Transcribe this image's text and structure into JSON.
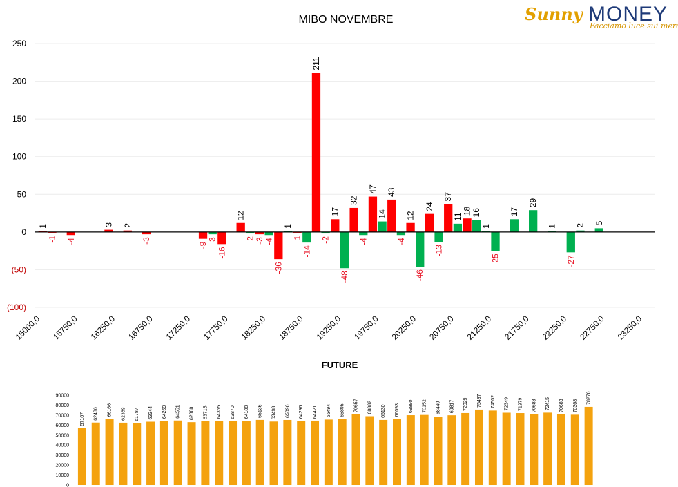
{
  "logo": {
    "brand_left": "Sunny",
    "brand_right": "MONEY",
    "tagline": "Facciamo luce sui mercati"
  },
  "chart_data": [
    {
      "type": "bar",
      "title": "MIBO NOVEMBRE",
      "ylim": [
        -100,
        250
      ],
      "yticks": [
        "250",
        "200",
        "150",
        "100",
        "50",
        "0",
        "(50)",
        "(100)"
      ],
      "x_tick_labels": [
        "15000,0",
        "15750,0",
        "16250,0",
        "16750,0",
        "17250,0",
        "17750,0",
        "18250,0",
        "18750,0",
        "19250,0",
        "19750,0",
        "20250,0",
        "20750,0",
        "21250,0",
        "21750,0",
        "22250,0",
        "22750,0",
        "23250,0"
      ],
      "grid": true,
      "colors": {
        "red": "#ff0000",
        "green": "#00b050",
        "negative_label": "#e81123",
        "positive_label": "#000000"
      },
      "bars": [
        {
          "slot": 0,
          "color": "red",
          "value": 1
        },
        {
          "slot": 1,
          "color": "red",
          "value": -1
        },
        {
          "slot": 3,
          "color": "red",
          "value": -4
        },
        {
          "slot": 7,
          "color": "red",
          "value": 3
        },
        {
          "slot": 9,
          "color": "red",
          "value": 2
        },
        {
          "slot": 11,
          "color": "red",
          "value": -3
        },
        {
          "slot": 17,
          "color": "red",
          "value": -9
        },
        {
          "slot": 18,
          "color": "green",
          "value": -3
        },
        {
          "slot": 19,
          "color": "red",
          "value": -16
        },
        {
          "slot": 21,
          "color": "red",
          "value": 12
        },
        {
          "slot": 22,
          "color": "green",
          "value": -2
        },
        {
          "slot": 23,
          "color": "red",
          "value": -3
        },
        {
          "slot": 24,
          "color": "green",
          "value": -4
        },
        {
          "slot": 25,
          "color": "red",
          "value": -36
        },
        {
          "slot": 26,
          "color": "green",
          "value": 1
        },
        {
          "slot": 27,
          "color": "red",
          "value": -1
        },
        {
          "slot": 28,
          "color": "green",
          "value": -14
        },
        {
          "slot": 29,
          "color": "red",
          "value": 211
        },
        {
          "slot": 30,
          "color": "green",
          "value": -2
        },
        {
          "slot": 31,
          "color": "red",
          "value": 17
        },
        {
          "slot": 32,
          "color": "green",
          "value": -48
        },
        {
          "slot": 33,
          "color": "red",
          "value": 32
        },
        {
          "slot": 34,
          "color": "green",
          "value": -4
        },
        {
          "slot": 35,
          "color": "red",
          "value": 47
        },
        {
          "slot": 36,
          "color": "green",
          "value": 14
        },
        {
          "slot": 37,
          "color": "red",
          "value": 43
        },
        {
          "slot": 38,
          "color": "green",
          "value": -4
        },
        {
          "slot": 39,
          "color": "red",
          "value": 12
        },
        {
          "slot": 40,
          "color": "green",
          "value": -46
        },
        {
          "slot": 41,
          "color": "red",
          "value": 24
        },
        {
          "slot": 42,
          "color": "green",
          "value": -13
        },
        {
          "slot": 43,
          "color": "red",
          "value": 37
        },
        {
          "slot": 44,
          "color": "green",
          "value": 11
        },
        {
          "slot": 45,
          "color": "red",
          "value": 18
        },
        {
          "slot": 46,
          "color": "green",
          "value": 16
        },
        {
          "slot": 47,
          "color": "green",
          "value": 1
        },
        {
          "slot": 48,
          "color": "green",
          "value": -25
        },
        {
          "slot": 50,
          "color": "green",
          "value": 17
        },
        {
          "slot": 52,
          "color": "green",
          "value": 29
        },
        {
          "slot": 54,
          "color": "green",
          "value": 1
        },
        {
          "slot": 56,
          "color": "green",
          "value": -27
        },
        {
          "slot": 57,
          "color": "green",
          "value": 2
        },
        {
          "slot": 59,
          "color": "green",
          "value": 5
        }
      ]
    },
    {
      "type": "bar",
      "title": "FUTURE",
      "ylim": [
        0,
        90000
      ],
      "yticks": [
        "0",
        "10000",
        "20000",
        "30000",
        "40000",
        "50000",
        "60000",
        "70000",
        "80000",
        "90000"
      ],
      "grid": false,
      "colors": {
        "bar": "#f4a20e"
      },
      "values": [
        57167,
        62486,
        66166,
        62369,
        61787,
        63344,
        64269,
        64551,
        62888,
        63715,
        64365,
        63870,
        64188,
        65136,
        63498,
        65096,
        64296,
        64421,
        65494,
        65895,
        70657,
        68882,
        65130,
        66093,
        69890,
        70152,
        68440,
        69817,
        72029,
        75497,
        74502,
        72349,
        71979,
        70683,
        72415,
        70683,
        70368,
        78276
      ]
    }
  ]
}
